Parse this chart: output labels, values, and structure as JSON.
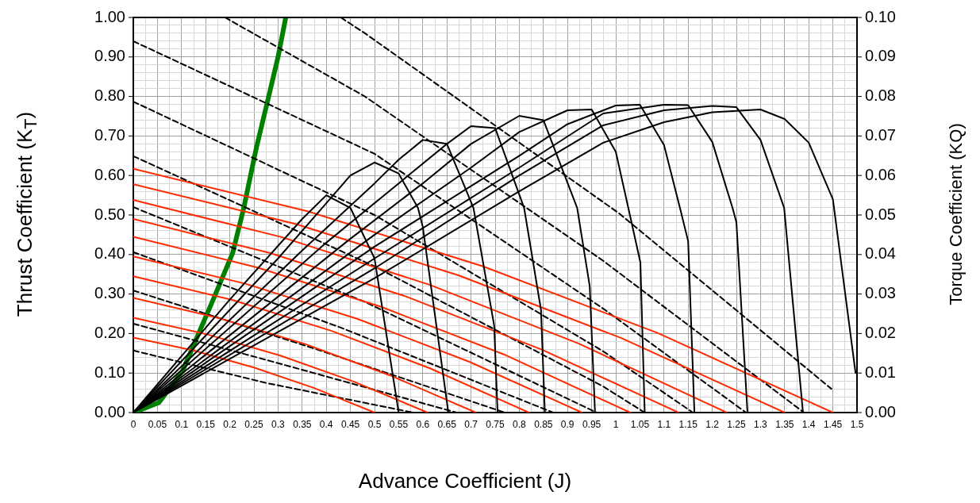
{
  "chart_data": {
    "type": "line",
    "xlabel": "Advance Coefficient (J)",
    "ylabel": "Thrust Coefficient (K$_{T}$)",
    "y2label": "Torque Coefficient (KQ)",
    "xlim": [
      0,
      1.5
    ],
    "xticks": [
      0,
      {
        "value": 0.025,
        "label": null
      },
      0.05,
      {
        "value": 0.075,
        "label": null
      },
      0.1,
      {
        "value": 0.125,
        "label": null
      },
      0.15,
      {
        "value": 0.175,
        "label": null
      },
      0.2,
      {
        "value": 0.225,
        "label": null
      },
      0.25,
      {
        "value": 0.275,
        "label": null
      },
      0.3,
      {
        "value": 0.325,
        "label": null
      },
      0.35,
      {
        "value": 0.375,
        "label": null
      },
      0.4,
      {
        "value": 0.425,
        "label": null
      },
      0.45,
      {
        "value": 0.475,
        "label": null
      },
      0.5,
      {
        "value": 0.525,
        "label": null
      },
      0.55,
      {
        "value": 0.575,
        "label": null
      },
      0.6,
      {
        "value": 0.625,
        "label": null
      },
      0.65,
      {
        "value": 0.675,
        "label": null
      },
      0.7,
      {
        "value": 0.725,
        "label": null
      },
      0.75,
      {
        "value": 0.775,
        "label": null
      },
      0.8,
      {
        "value": 0.825,
        "label": null
      },
      0.85,
      {
        "value": 0.875,
        "label": null
      },
      0.9,
      {
        "value": 0.925,
        "label": null
      },
      0.95,
      {
        "value": 0.975,
        "label": null
      },
      1,
      {
        "value": 1.025,
        "label": null
      },
      1.05,
      {
        "value": 1.075,
        "label": null
      },
      1.1,
      {
        "value": 1.125,
        "label": null
      },
      1.15,
      {
        "value": 1.175,
        "label": null
      },
      1.2,
      {
        "value": 1.225,
        "label": null
      },
      1.25,
      {
        "value": 1.275,
        "label": null
      },
      1.3,
      {
        "value": 1.325,
        "label": null
      },
      1.35,
      {
        "value": 1.375,
        "label": null
      },
      1.4,
      {
        "value": 1.425,
        "label": null
      },
      1.45,
      {
        "value": 1.475,
        "label": null
      },
      1.5
    ],
    "ylim": [
      0,
      1
    ],
    "yticks": [
      {
        "value": 0,
        "label": "0.00"
      },
      {
        "value": 0.02,
        "label": null
      },
      {
        "value": 0.04,
        "label": null
      },
      {
        "value": 0.06,
        "label": null
      },
      {
        "value": 0.08,
        "label": null
      },
      {
        "value": 0.1,
        "label": "0.10"
      },
      {
        "value": 0.12,
        "label": null
      },
      {
        "value": 0.14,
        "label": null
      },
      {
        "value": 0.16,
        "label": null
      },
      {
        "value": 0.18,
        "label": null
      },
      {
        "value": 0.2,
        "label": "0.20"
      },
      {
        "value": 0.22,
        "label": null
      },
      {
        "value": 0.24,
        "label": null
      },
      {
        "value": 0.26,
        "label": null
      },
      {
        "value": 0.28,
        "label": null
      },
      {
        "value": 0.3,
        "label": "0.30"
      },
      {
        "value": 0.32,
        "label": null
      },
      {
        "value": 0.34,
        "label": null
      },
      {
        "value": 0.36,
        "label": null
      },
      {
        "value": 0.38,
        "label": null
      },
      {
        "value": 0.4,
        "label": "0.40"
      },
      {
        "value": 0.42,
        "label": null
      },
      {
        "value": 0.44,
        "label": null
      },
      {
        "value": 0.46,
        "label": null
      },
      {
        "value": 0.48,
        "label": null
      },
      {
        "value": 0.5,
        "label": "0.50"
      },
      {
        "value": 0.52,
        "label": null
      },
      {
        "value": 0.54,
        "label": null
      },
      {
        "value": 0.56,
        "label": null
      },
      {
        "value": 0.58,
        "label": null
      },
      {
        "value": 0.6,
        "label": "0.60"
      },
      {
        "value": 0.62,
        "label": null
      },
      {
        "value": 0.64,
        "label": null
      },
      {
        "value": 0.66,
        "label": null
      },
      {
        "value": 0.68,
        "label": null
      },
      {
        "value": 0.7,
        "label": "0.70"
      },
      {
        "value": 0.72,
        "label": null
      },
      {
        "value": 0.74,
        "label": null
      },
      {
        "value": 0.76,
        "label": null
      },
      {
        "value": 0.78,
        "label": null
      },
      {
        "value": 0.8,
        "label": "0.80"
      },
      {
        "value": 0.82,
        "label": null
      },
      {
        "value": 0.84,
        "label": null
      },
      {
        "value": 0.86,
        "label": null
      },
      {
        "value": 0.88,
        "label": null
      },
      {
        "value": 0.9,
        "label": "0.90"
      },
      {
        "value": 0.92,
        "label": null
      },
      {
        "value": 0.94,
        "label": null
      },
      {
        "value": 0.96,
        "label": null
      },
      {
        "value": 0.98,
        "label": null
      },
      {
        "value": 1,
        "label": "1.00"
      }
    ],
    "y2lim": [
      0,
      0.1
    ],
    "y2ticks": [
      {
        "value": 0,
        "label": "0.00"
      },
      {
        "value": 0.01,
        "label": "0.01"
      },
      {
        "value": 0.02,
        "label": "0.02"
      },
      {
        "value": 0.03,
        "label": "0.03"
      },
      {
        "value": 0.04,
        "label": "0.04"
      },
      {
        "value": 0.05,
        "label": "0.05"
      },
      {
        "value": 0.06,
        "label": "0.06"
      },
      {
        "value": 0.07,
        "label": "0.07"
      },
      {
        "value": 0.08,
        "label": "0.08"
      },
      {
        "value": 0.09,
        "label": "0.09"
      },
      {
        "value": 0.1,
        "label": "0.10"
      }
    ],
    "grid": true,
    "series": [
      {
        "color": "#000000",
        "x": [
          0,
          0.2,
          0.35,
          0.4,
          0.45,
          0.5,
          0.55
        ],
        "values": [
          0,
          0.286,
          0.49,
          0.55,
          0.518,
          0.39,
          0
        ]
      },
      {
        "color": "#000000",
        "x": [
          0,
          0.3,
          0.4,
          0.45,
          0.5,
          0.55,
          0.59,
          0.6,
          0.653
        ],
        "values": [
          0,
          0.39,
          0.53,
          0.6,
          0.633,
          0.605,
          0.518,
          0.47,
          0
        ]
      },
      {
        "color": "#000000",
        "x": [
          0,
          0.35,
          0.5,
          0.55,
          0.6,
          0.65,
          0.705,
          0.748,
          0.755
        ],
        "values": [
          0,
          0.41,
          0.58,
          0.64,
          0.69,
          0.68,
          0.518,
          0.22,
          0
        ]
      },
      {
        "color": "#000000",
        "x": [
          0,
          0.4,
          0.55,
          0.65,
          0.7,
          0.75,
          0.81,
          0.845,
          0.853
        ],
        "values": [
          0,
          0.43,
          0.58,
          0.68,
          0.725,
          0.72,
          0.518,
          0.26,
          0
        ]
      },
      {
        "color": "#000000",
        "x": [
          0,
          0.45,
          0.6,
          0.7,
          0.8,
          0.85,
          0.92,
          0.946,
          0.957
        ],
        "values": [
          0,
          0.44,
          0.58,
          0.68,
          0.751,
          0.74,
          0.518,
          0.32,
          0
        ]
      },
      {
        "color": "#000000",
        "x": [
          0,
          0.5,
          0.7,
          0.8,
          0.9,
          0.95,
          1,
          1.026,
          1.051,
          1.06
        ],
        "values": [
          0,
          0.45,
          0.62,
          0.71,
          0.765,
          0.767,
          0.66,
          0.518,
          0.38,
          0
        ]
      },
      {
        "color": "#000000",
        "x": [
          0,
          0.5,
          0.8,
          0.9,
          1,
          1.05,
          1.1,
          1.133,
          1.15,
          1.163
        ],
        "values": [
          0,
          0.42,
          0.65,
          0.73,
          0.777,
          0.779,
          0.677,
          0.518,
          0.434,
          0
        ]
      },
      {
        "color": "#000000",
        "x": [
          0,
          0.5,
          0.8,
          0.974,
          1.1,
          1.15,
          1.2,
          1.242,
          1.25,
          1.273
        ],
        "values": [
          0,
          0.39,
          0.62,
          0.757,
          0.779,
          0.778,
          0.685,
          0.518,
          0.482,
          0
        ]
      },
      {
        "color": "#000000",
        "x": [
          0,
          0.5,
          0.8,
          0.974,
          1.1,
          1.2,
          1.25,
          1.3,
          1.349,
          1.388
        ],
        "values": [
          0,
          0.365,
          0.6,
          0.727,
          0.765,
          0.776,
          0.773,
          0.69,
          0.518,
          0
        ]
      },
      {
        "color": "#000000",
        "x": [
          0,
          0.5,
          0.8,
          0.974,
          1.1,
          1.2,
          1.3,
          1.35,
          1.4,
          1.45,
          1.497
        ],
        "values": [
          0,
          0.34,
          0.56,
          0.683,
          0.735,
          0.76,
          0.767,
          0.743,
          0.683,
          0.54,
          0.1
        ]
      },
      {
        "color": "#ff2a00",
        "x": [
          0,
          0.125,
          0.25,
          0.375,
          0.5
        ],
        "values": [
          0.19,
          0.157,
          0.114,
          0.062,
          0
        ]
      },
      {
        "color": "#ff2a00",
        "x": [
          0,
          0.1525,
          0.305,
          0.4575,
          0.61
        ],
        "values": [
          0.24,
          0.198,
          0.144,
          0.078,
          0
        ]
      },
      {
        "color": "#ff2a00",
        "x": [
          0,
          0.1775,
          0.355,
          0.5325,
          0.71
        ],
        "values": [
          0.29,
          0.239,
          0.174,
          0.094,
          0
        ]
      },
      {
        "color": "#ff2a00",
        "x": [
          0,
          0.205,
          0.41,
          0.615,
          0.82
        ],
        "values": [
          0.345,
          0.285,
          0.207,
          0.112,
          0
        ]
      },
      {
        "color": "#ff2a00",
        "x": [
          0,
          0.2325,
          0.465,
          0.6975,
          0.93
        ],
        "values": [
          0.395,
          0.326,
          0.237,
          0.128,
          0
        ]
      },
      {
        "color": "#ff2a00",
        "x": [
          0,
          0.2575,
          0.515,
          0.7725,
          1.03
        ],
        "values": [
          0.445,
          0.367,
          0.267,
          0.145,
          0
        ]
      },
      {
        "color": "#ff2a00",
        "x": [
          0,
          0.2825,
          0.565,
          0.8475,
          1.13
        ],
        "values": [
          0.49,
          0.404,
          0.294,
          0.159,
          0
        ]
      },
      {
        "color": "#ff2a00",
        "x": [
          0,
          0.3075,
          0.615,
          0.9225,
          1.23
        ],
        "values": [
          0.538,
          0.444,
          0.323,
          0.175,
          0
        ]
      },
      {
        "color": "#ff2a00",
        "x": [
          0,
          0.3375,
          0.675,
          1.0125,
          1.35
        ],
        "values": [
          0.578,
          0.477,
          0.347,
          0.188,
          0
        ]
      },
      {
        "color": "#ff2a00",
        "x": [
          0,
          0.3625,
          0.725,
          1.0875,
          1.45
        ],
        "values": [
          0.617,
          0.509,
          0.37,
          0.201,
          0
        ]
      },
      {
        "color": "#000000",
        "axis": "y2",
        "line_style": "dashed",
        "x": [
          0,
          0.275,
          0.58
        ],
        "values": [
          0.0157,
          0.0075,
          0
        ]
      },
      {
        "color": "#000000",
        "axis": "y2",
        "line_style": "dashed",
        "x": [
          0,
          0.33,
          0.67
        ],
        "values": [
          0.0225,
          0.0115,
          0
        ]
      },
      {
        "color": "#000000",
        "axis": "y2",
        "line_style": "dashed",
        "x": [
          0,
          0.38,
          0.77
        ],
        "values": [
          0.0309,
          0.016,
          0
        ]
      },
      {
        "color": "#000000",
        "axis": "y2",
        "line_style": "dashed",
        "x": [
          0,
          0.43,
          0.87
        ],
        "values": [
          0.0406,
          0.0215,
          0
        ]
      },
      {
        "color": "#000000",
        "axis": "y2",
        "line_style": "dashed",
        "x": [
          0,
          0.48,
          0.96
        ],
        "values": [
          0.052,
          0.028,
          0
        ]
      },
      {
        "color": "#000000",
        "axis": "y2",
        "line_style": "dashed",
        "x": [
          0,
          0.5,
          0.974,
          1.06
        ],
        "values": [
          0.0649,
          0.037,
          0.0066,
          0
        ]
      },
      {
        "color": "#000000",
        "axis": "y2",
        "line_style": "dashed",
        "x": [
          0,
          0.5,
          0.974,
          1.16
        ],
        "values": [
          0.0787,
          0.05,
          0.0155,
          0
        ]
      },
      {
        "color": "#000000",
        "axis": "y2",
        "line_style": "dashed",
        "x": [
          0,
          0.5,
          0.974,
          1.27
        ],
        "values": [
          0.094,
          0.0655,
          0.0263,
          0
        ]
      },
      {
        "color": "#000000",
        "axis": "y2",
        "line_style": "dashed",
        "x": [
          0.19,
          0.48,
          0.974,
          1.39
        ],
        "values": [
          0.1,
          0.08,
          0.0384,
          0
        ]
      },
      {
        "color": "#000000",
        "axis": "y2",
        "line_style": "dashed",
        "x": [
          0.43,
          0.48,
          1.007,
          1.447
        ],
        "values": [
          0.1,
          0.096,
          0.0504,
          0.006
        ]
      },
      {
        "color": "#008000",
        "x": [
          0,
          0.053,
          0.102,
          0.168,
          0.206,
          0.229,
          0.255,
          0.28,
          0.3,
          0.316
        ],
        "values": [
          0,
          0.025,
          0.105,
          0.293,
          0.404,
          0.518,
          0.67,
          0.797,
          0.9,
          1
        ]
      }
    ]
  }
}
